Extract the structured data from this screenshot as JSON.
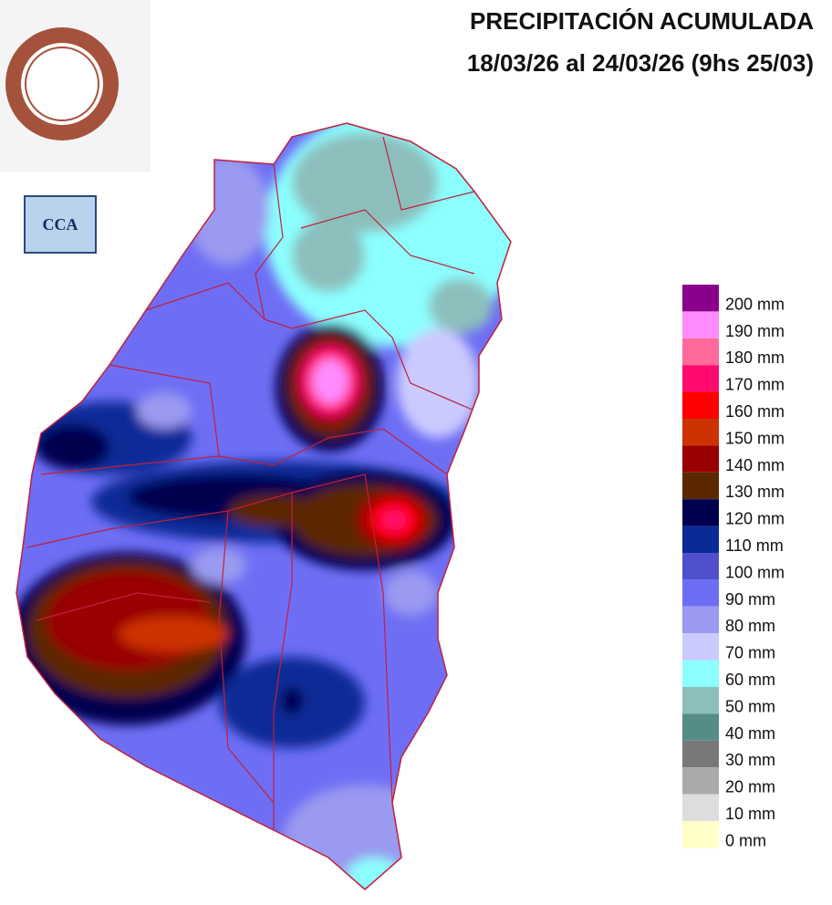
{
  "header": {
    "title": "PRECIPITACIÓN ACUMULADA",
    "subtitle": "18/03/26 al 24/03/26 (9hs 25/03)"
  },
  "badge": {
    "label": "CCA"
  },
  "legend": [
    {
      "label": "200 mm",
      "color": "#8b008b"
    },
    {
      "label": "190 mm",
      "color": "#ff8cff"
    },
    {
      "label": "180 mm",
      "color": "#ff6a9a"
    },
    {
      "label": "170 mm",
      "color": "#ff0a6e"
    },
    {
      "label": "160 mm",
      "color": "#ff0000"
    },
    {
      "label": "150 mm",
      "color": "#cc3300"
    },
    {
      "label": "140 mm",
      "color": "#990000"
    },
    {
      "label": "130 mm",
      "color": "#5c2800"
    },
    {
      "label": "120 mm",
      "color": "#000050"
    },
    {
      "label": "110 mm",
      "color": "#0a2a96"
    },
    {
      "label": "100 mm",
      "color": "#5050cc"
    },
    {
      "label": "90 mm",
      "color": "#6e6ef5"
    },
    {
      "label": "80 mm",
      "color": "#9a9af0"
    },
    {
      "label": "70 mm",
      "color": "#cacaff"
    },
    {
      "label": "60 mm",
      "color": "#8cffff"
    },
    {
      "label": "50 mm",
      "color": "#8cbfbc"
    },
    {
      "label": "40 mm",
      "color": "#558c88"
    },
    {
      "label": "30 mm",
      "color": "#787878"
    },
    {
      "label": "20 mm",
      "color": "#aaaaaa"
    },
    {
      "label": "10 mm",
      "color": "#dddddd"
    },
    {
      "label": "0 mm",
      "color": "#ffffc8"
    }
  ]
}
